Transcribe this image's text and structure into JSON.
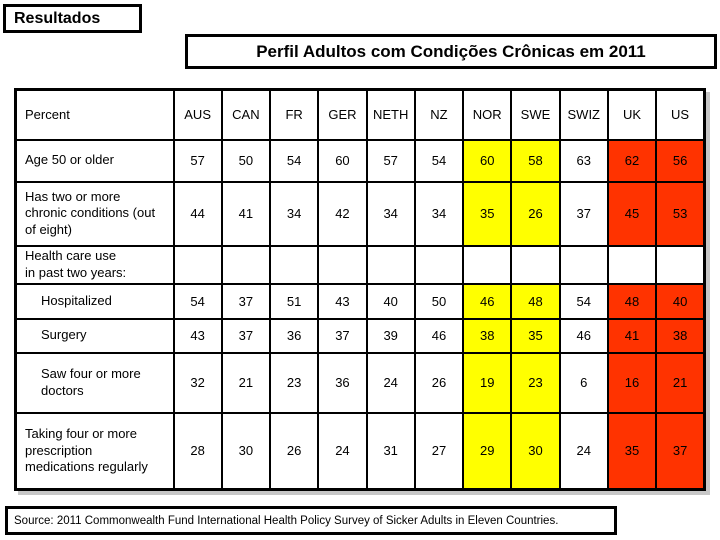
{
  "slide": {
    "badge_label": "Resultados",
    "title": "Perfil Adultos com Condições Crônicas em 2011",
    "source_note": "Source: 2011 Commonwealth Fund International Health Policy Survey of Sicker Adults in Eleven Countries."
  },
  "colors": {
    "highlight_yellow": "#FFFF00",
    "highlight_red": "#FF3300",
    "border": "#000000",
    "background": "#FFFFFF"
  },
  "chart_data": {
    "type": "table",
    "title": "Perfil Adultos com Condições Crônicas em 2011",
    "unit": "Percent",
    "columns": [
      "Percent",
      "AUS",
      "CAN",
      "FR",
      "GER",
      "NETH",
      "NZ",
      "NOR",
      "SWE",
      "SWIZ",
      "UK",
      "US"
    ],
    "column_highlights": {
      "NOR": "yellow",
      "SWE": "yellow",
      "UK": "red",
      "US": "red"
    },
    "rows": [
      {
        "label": "Age 50 or older",
        "indent": false,
        "values": [
          57,
          50,
          54,
          60,
          57,
          54,
          60,
          58,
          63,
          62,
          56
        ]
      },
      {
        "label": "Has two or more\nchronic conditions (out\nof eight)",
        "indent": false,
        "values": [
          44,
          41,
          34,
          42,
          34,
          34,
          35,
          26,
          37,
          45,
          53
        ]
      },
      {
        "label": "Health care use\nin past two years:",
        "indent": false,
        "values": [
          "",
          "",
          "",
          "",
          "",
          "",
          "",
          "",
          "",
          "",
          ""
        ]
      },
      {
        "label": "Hospitalized",
        "indent": true,
        "values": [
          54,
          37,
          51,
          43,
          40,
          50,
          46,
          48,
          54,
          48,
          40
        ]
      },
      {
        "label": "Surgery",
        "indent": true,
        "values": [
          43,
          37,
          36,
          37,
          39,
          46,
          38,
          35,
          46,
          41,
          38
        ]
      },
      {
        "label": "Saw four or more\ndoctors",
        "indent": true,
        "values": [
          32,
          21,
          23,
          36,
          24,
          26,
          19,
          23,
          6,
          16,
          21
        ]
      },
      {
        "label": "Taking four or more\nprescription\nmedications regularly",
        "indent": false,
        "values": [
          28,
          30,
          26,
          24,
          31,
          27,
          29,
          30,
          24,
          35,
          37
        ]
      }
    ]
  }
}
